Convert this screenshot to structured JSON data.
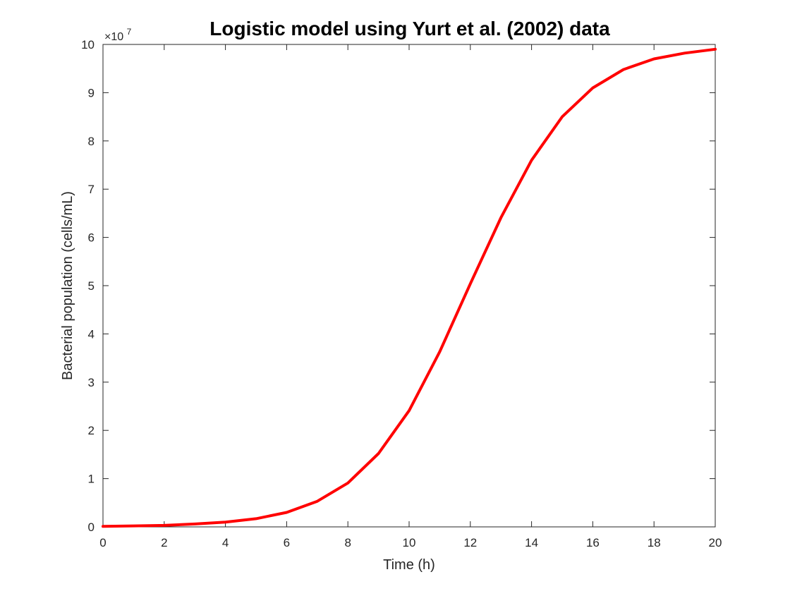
{
  "figure": {
    "background": "#ffffff"
  },
  "chart_data": {
    "type": "line",
    "title": "Logistic model using Yurt et al. (2002) data",
    "xlabel": "Time (h)",
    "ylabel": "Bacterial population (cells/mL)",
    "y_exponent_base": "×10",
    "y_exponent_power": "7",
    "xlim": [
      0,
      20
    ],
    "ylim": [
      0,
      10
    ],
    "x_ticks": [
      0,
      2,
      4,
      6,
      8,
      10,
      12,
      14,
      16,
      18,
      20
    ],
    "y_ticks": [
      0,
      1,
      2,
      3,
      4,
      5,
      6,
      7,
      8,
      9,
      10
    ],
    "x_tick_labels": [
      "0",
      "2",
      "4",
      "6",
      "8",
      "10",
      "12",
      "14",
      "16",
      "18",
      "20"
    ],
    "y_tick_labels": [
      "0",
      "1",
      "2",
      "3",
      "4",
      "5",
      "6",
      "7",
      "8",
      "9",
      "10"
    ],
    "grid": false,
    "legend": "none",
    "series": [
      {
        "color": "#ff0000",
        "x": [
          0,
          1,
          2,
          3,
          4,
          5,
          6,
          7,
          8,
          9,
          10,
          11,
          12,
          13,
          14,
          15,
          16,
          17,
          18,
          19,
          20
        ],
        "y": [
          0.01,
          0.02,
          0.03,
          0.06,
          0.1,
          0.17,
          0.3,
          0.53,
          0.91,
          1.52,
          2.41,
          3.63,
          5.04,
          6.41,
          7.6,
          8.5,
          9.1,
          9.48,
          9.7,
          9.82,
          9.9
        ]
      }
    ]
  }
}
